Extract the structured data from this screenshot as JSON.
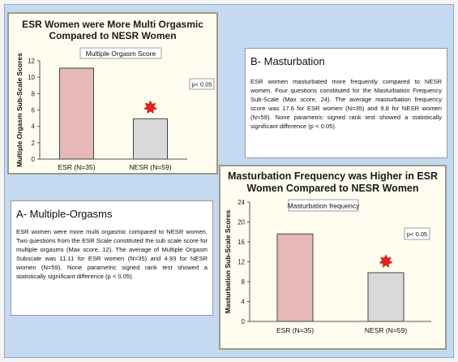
{
  "charts": [
    {
      "title_line1": "ESR Women were More Multi Orgasmic",
      "title_line2": "Compared to NESR Women",
      "star_color": "#e8221c",
      "bar_colors": [
        "#e6b8b7",
        "#d9d9d9"
      ]
    },
    {
      "title_line1": "Masturbation Frequency was Higher  in ESR",
      "title_line2": "Women Compared to NESR Women",
      "star_color": "#e8221c",
      "bar_colors": [
        "#e6b8b7",
        "#d9d9d9"
      ]
    }
  ],
  "chart_data": [
    {
      "type": "bar",
      "title": "Multiple  Orgasm Score",
      "categories": [
        "ESR (N=35)",
        "NESR (N=59)"
      ],
      "values": [
        11.11,
        4.93
      ],
      "ylabel": "Multiple Orgasm  Sub-Scale  Scores",
      "ylim": [
        0,
        12
      ],
      "yticks": [
        0,
        2,
        4,
        6,
        8,
        10,
        12
      ],
      "annotation": "p< 0.05",
      "grid": false
    },
    {
      "type": "bar",
      "title": "Masturbation frequency",
      "categories": [
        "ESR (N=35)",
        "NESR (N=59)"
      ],
      "values": [
        17.6,
        9.8
      ],
      "ylabel": "Masturbation Sub-Scale  Scores",
      "ylim": [
        0,
        24
      ],
      "yticks": [
        0,
        4,
        8,
        12,
        16,
        20,
        24
      ],
      "annotation": "p< 0.05",
      "grid": false
    }
  ],
  "textA": {
    "title": "A- Multiple-Orgasms",
    "body": "ESR women were  more multi orgasmic compared to NESR women.  Two questions from the ESR Scale constituted the sub scale score for multiple orgasms (Max score, 12).   The average of Multiple Orgasm Subscale was 11.11 for ESR  women (N=35) and 4.93 for NESR women (N=59). None parametric signed rank test showed a statistically significant difference (p < 0.05)."
  },
  "textB": {
    "title": "B- Masturbation",
    "body": "ESR women  masturbated more frequently compared to NESR women. Four questions constituted for the Masturbation  Frequency Sub-Scale (Max score, 24). The average masturbation frequency score was 17.6 for ESR women (N=35) and 9.8 for NESR women (N=59). None parametric signed rank test showed a statistically significant difference (p < 0.05)."
  }
}
